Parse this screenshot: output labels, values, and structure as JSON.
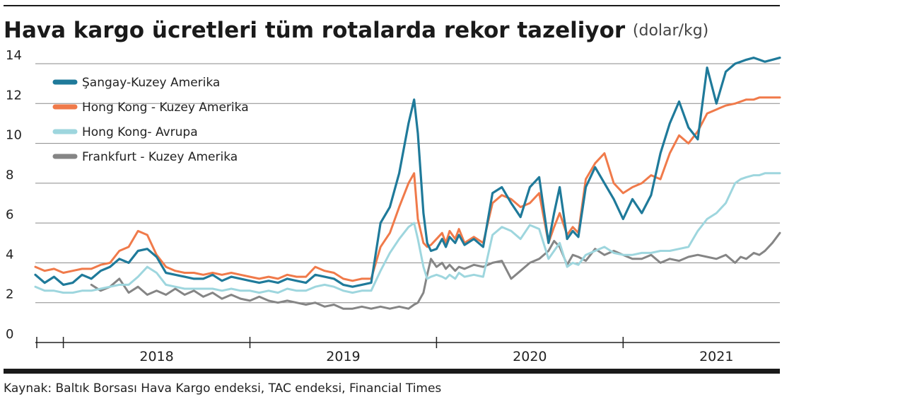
{
  "chart_data": {
    "type": "line",
    "title": "Hava kargo ücretleri tüm rotalarda rekor tazeliyor",
    "unit": "(dolar/kg)",
    "ylim": [
      0,
      14
    ],
    "yticks": [
      "0",
      "2",
      "4",
      "6",
      "8",
      "10",
      "12",
      "14"
    ],
    "xlim": [
      2017.85,
      2021.84
    ],
    "x_categories": [
      "2018",
      "2019",
      "2020",
      "2021"
    ],
    "grid": "horizontal",
    "legend_position": "top-left",
    "source": "Kaynak: Baltık Borsası Hava Kargo endeksi, TAC endeksi, Financial Times",
    "series": [
      {
        "name": "Şangay-Kuzey Amerika",
        "color": "#1f7a9a",
        "x": [
          2017.85,
          2017.9,
          2017.95,
          2018.0,
          2018.05,
          2018.1,
          2018.15,
          2018.2,
          2018.25,
          2018.3,
          2018.35,
          2018.4,
          2018.45,
          2018.5,
          2018.55,
          2018.6,
          2018.65,
          2018.7,
          2018.75,
          2018.8,
          2018.85,
          2018.9,
          2018.95,
          2019.0,
          2019.05,
          2019.1,
          2019.15,
          2019.2,
          2019.25,
          2019.3,
          2019.35,
          2019.4,
          2019.45,
          2019.5,
          2019.55,
          2019.6,
          2019.65,
          2019.7,
          2019.75,
          2019.8,
          2019.85,
          2019.88,
          2019.9,
          2019.93,
          2019.95,
          2019.97,
          2020.0,
          2020.03,
          2020.05,
          2020.07,
          2020.1,
          2020.12,
          2020.15,
          2020.2,
          2020.25,
          2020.3,
          2020.35,
          2020.4,
          2020.45,
          2020.5,
          2020.55,
          2020.6,
          2020.63,
          2020.66,
          2020.7,
          2020.73,
          2020.76,
          2020.8,
          2020.85,
          2020.9,
          2020.95,
          2021.0,
          2021.05,
          2021.1,
          2021.15,
          2021.2,
          2021.25,
          2021.3,
          2021.35,
          2021.4,
          2021.45,
          2021.5,
          2021.55,
          2021.6,
          2021.63,
          2021.66,
          2021.7,
          2021.73,
          2021.76,
          2021.8,
          2021.84
        ],
        "y": [
          3.4,
          3.0,
          3.3,
          2.9,
          3.0,
          3.4,
          3.2,
          3.6,
          3.8,
          4.2,
          4.0,
          4.6,
          4.7,
          4.3,
          3.5,
          3.4,
          3.3,
          3.2,
          3.2,
          3.4,
          3.1,
          3.3,
          3.2,
          3.1,
          3.0,
          3.1,
          3.0,
          3.2,
          3.1,
          3.0,
          3.4,
          3.3,
          3.2,
          2.9,
          2.8,
          2.9,
          3.0,
          6.0,
          6.8,
          8.5,
          11.0,
          12.2,
          10.5,
          6.5,
          5.0,
          4.6,
          4.7,
          5.2,
          4.8,
          5.3,
          5.0,
          5.4,
          4.9,
          5.2,
          4.8,
          7.5,
          7.8,
          7.0,
          6.3,
          7.8,
          8.3,
          5.0,
          6.5,
          7.8,
          5.2,
          5.6,
          5.3,
          7.8,
          8.8,
          8.0,
          7.2,
          6.2,
          7.2,
          6.5,
          7.4,
          9.5,
          11.0,
          12.1,
          10.8,
          10.2,
          13.8,
          12.0,
          13.6,
          14.0,
          14.1,
          14.2,
          14.3,
          14.2,
          14.1,
          14.2,
          14.3
        ],
        "y_note": "values read from the printed y-axis"
      },
      {
        "name": "Hong Kong - Kuzey Amerika",
        "color": "#f07a4a",
        "x": [
          2017.85,
          2017.9,
          2017.95,
          2018.0,
          2018.05,
          2018.1,
          2018.15,
          2018.2,
          2018.25,
          2018.3,
          2018.35,
          2018.4,
          2018.45,
          2018.5,
          2018.55,
          2018.6,
          2018.65,
          2018.7,
          2018.75,
          2018.8,
          2018.85,
          2018.9,
          2018.95,
          2019.0,
          2019.05,
          2019.1,
          2019.15,
          2019.2,
          2019.25,
          2019.3,
          2019.35,
          2019.4,
          2019.45,
          2019.5,
          2019.55,
          2019.6,
          2019.65,
          2019.7,
          2019.75,
          2019.8,
          2019.85,
          2019.88,
          2019.9,
          2019.93,
          2019.95,
          2019.97,
          2020.0,
          2020.03,
          2020.05,
          2020.07,
          2020.1,
          2020.12,
          2020.15,
          2020.2,
          2020.25,
          2020.3,
          2020.35,
          2020.4,
          2020.45,
          2020.5,
          2020.55,
          2020.6,
          2020.63,
          2020.66,
          2020.7,
          2020.73,
          2020.76,
          2020.8,
          2020.85,
          2020.9,
          2020.95,
          2021.0,
          2021.05,
          2021.1,
          2021.15,
          2021.2,
          2021.25,
          2021.3,
          2021.35,
          2021.4,
          2021.45,
          2021.5,
          2021.55,
          2021.6,
          2021.63,
          2021.66,
          2021.7,
          2021.73,
          2021.76,
          2021.8,
          2021.84
        ],
        "y": [
          3.8,
          3.6,
          3.7,
          3.5,
          3.6,
          3.7,
          3.7,
          3.9,
          4.0,
          4.6,
          4.8,
          5.6,
          5.4,
          4.4,
          3.8,
          3.6,
          3.5,
          3.5,
          3.4,
          3.5,
          3.4,
          3.5,
          3.4,
          3.3,
          3.2,
          3.3,
          3.2,
          3.4,
          3.3,
          3.3,
          3.8,
          3.6,
          3.5,
          3.2,
          3.1,
          3.2,
          3.2,
          4.8,
          5.5,
          6.8,
          8.0,
          8.5,
          6.2,
          5.0,
          4.8,
          4.9,
          5.2,
          5.5,
          5.0,
          5.6,
          5.2,
          5.7,
          5.0,
          5.3,
          5.0,
          7.0,
          7.4,
          7.2,
          6.8,
          7.0,
          7.5,
          5.0,
          5.8,
          6.5,
          5.4,
          5.8,
          5.5,
          8.2,
          9.0,
          9.5,
          8.0,
          7.5,
          7.8,
          8.0,
          8.4,
          8.2,
          9.5,
          10.4,
          10.0,
          10.6,
          11.5,
          11.7,
          11.9,
          12.0,
          12.1,
          12.2,
          12.2,
          12.3,
          12.3,
          12.3,
          12.3
        ]
      },
      {
        "name": "Hong Kong- Avrupa",
        "color": "#9ed6de",
        "x": [
          2017.85,
          2017.9,
          2017.95,
          2018.0,
          2018.05,
          2018.1,
          2018.15,
          2018.2,
          2018.25,
          2018.3,
          2018.35,
          2018.4,
          2018.45,
          2018.5,
          2018.55,
          2018.6,
          2018.65,
          2018.7,
          2018.75,
          2018.8,
          2018.85,
          2018.9,
          2018.95,
          2019.0,
          2019.05,
          2019.1,
          2019.15,
          2019.2,
          2019.25,
          2019.3,
          2019.35,
          2019.4,
          2019.45,
          2019.5,
          2019.55,
          2019.6,
          2019.65,
          2019.7,
          2019.75,
          2019.8,
          2019.85,
          2019.88,
          2019.9,
          2019.93,
          2019.95,
          2019.97,
          2020.0,
          2020.03,
          2020.05,
          2020.07,
          2020.1,
          2020.12,
          2020.15,
          2020.2,
          2020.25,
          2020.3,
          2020.35,
          2020.4,
          2020.45,
          2020.5,
          2020.55,
          2020.6,
          2020.63,
          2020.66,
          2020.7,
          2020.73,
          2020.76,
          2020.8,
          2020.85,
          2020.9,
          2020.95,
          2021.0,
          2021.05,
          2021.1,
          2021.15,
          2021.2,
          2021.25,
          2021.3,
          2021.35,
          2021.4,
          2021.45,
          2021.5,
          2021.55,
          2021.6,
          2021.63,
          2021.66,
          2021.7,
          2021.73,
          2021.76,
          2021.8,
          2021.84
        ],
        "y": [
          2.8,
          2.6,
          2.6,
          2.5,
          2.5,
          2.6,
          2.6,
          2.7,
          2.8,
          2.9,
          2.9,
          3.3,
          3.8,
          3.5,
          2.9,
          2.8,
          2.7,
          2.7,
          2.7,
          2.7,
          2.6,
          2.7,
          2.6,
          2.6,
          2.5,
          2.6,
          2.5,
          2.7,
          2.6,
          2.6,
          2.8,
          2.9,
          2.8,
          2.6,
          2.5,
          2.6,
          2.6,
          3.6,
          4.5,
          5.2,
          5.8,
          6.0,
          5.2,
          3.8,
          3.2,
          3.3,
          3.4,
          3.3,
          3.2,
          3.4,
          3.2,
          3.5,
          3.3,
          3.4,
          3.3,
          5.4,
          5.8,
          5.6,
          5.2,
          5.9,
          5.7,
          4.2,
          4.6,
          5.0,
          3.8,
          4.0,
          3.9,
          4.4,
          4.6,
          4.8,
          4.5,
          4.4,
          4.4,
          4.5,
          4.5,
          4.6,
          4.6,
          4.7,
          4.8,
          5.6,
          6.2,
          6.5,
          7.0,
          8.0,
          8.2,
          8.3,
          8.4,
          8.4,
          8.5,
          8.5,
          8.5
        ]
      },
      {
        "name": "Frankfurt - Kuzey Amerika",
        "color": "#858585",
        "x": [
          2018.15,
          2018.2,
          2018.25,
          2018.3,
          2018.35,
          2018.4,
          2018.45,
          2018.5,
          2018.55,
          2018.6,
          2018.65,
          2018.7,
          2018.75,
          2018.8,
          2018.85,
          2018.9,
          2018.95,
          2019.0,
          2019.05,
          2019.1,
          2019.15,
          2019.2,
          2019.25,
          2019.3,
          2019.35,
          2019.4,
          2019.45,
          2019.5,
          2019.55,
          2019.6,
          2019.65,
          2019.7,
          2019.75,
          2019.8,
          2019.85,
          2019.88,
          2019.9,
          2019.93,
          2019.95,
          2019.97,
          2020.0,
          2020.03,
          2020.05,
          2020.07,
          2020.1,
          2020.12,
          2020.15,
          2020.2,
          2020.25,
          2020.3,
          2020.35,
          2020.4,
          2020.45,
          2020.5,
          2020.55,
          2020.6,
          2020.63,
          2020.66,
          2020.7,
          2020.73,
          2020.76,
          2020.8,
          2020.85,
          2020.9,
          2020.95,
          2021.0,
          2021.05,
          2021.1,
          2021.15,
          2021.2,
          2021.25,
          2021.3,
          2021.35,
          2021.4,
          2021.45,
          2021.5,
          2021.55,
          2021.6,
          2021.63,
          2021.66,
          2021.7,
          2021.73,
          2021.76,
          2021.8,
          2021.84
        ],
        "y": [
          2.9,
          2.6,
          2.8,
          3.2,
          2.5,
          2.8,
          2.4,
          2.6,
          2.4,
          2.7,
          2.4,
          2.6,
          2.3,
          2.5,
          2.2,
          2.4,
          2.2,
          2.1,
          2.3,
          2.1,
          2.0,
          2.1,
          2.0,
          1.9,
          2.0,
          1.8,
          1.9,
          1.7,
          1.7,
          1.8,
          1.7,
          1.8,
          1.7,
          1.8,
          1.7,
          1.9,
          2.0,
          2.5,
          3.4,
          4.2,
          3.8,
          4.0,
          3.7,
          3.9,
          3.6,
          3.8,
          3.7,
          3.9,
          3.8,
          4.0,
          4.1,
          3.2,
          3.6,
          4.0,
          4.2,
          4.6,
          5.1,
          4.8,
          3.9,
          4.4,
          4.3,
          4.1,
          4.7,
          4.4,
          4.6,
          4.4,
          4.2,
          4.2,
          4.4,
          4.0,
          4.2,
          4.1,
          4.3,
          4.4,
          4.3,
          4.2,
          4.4,
          4.0,
          4.3,
          4.2,
          4.5,
          4.4,
          4.6,
          5.0,
          5.5
        ]
      }
    ]
  }
}
